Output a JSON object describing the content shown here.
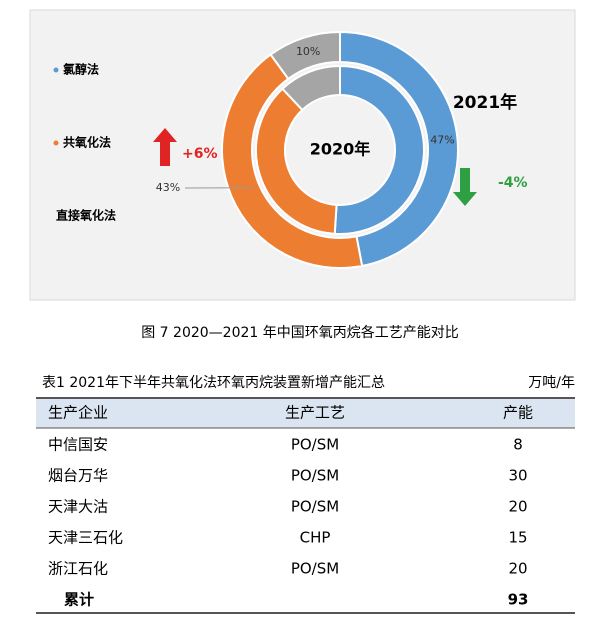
{
  "chart_data": {
    "type": "nested-donut",
    "center_label": "2020年",
    "ring_label": "2021年",
    "categories": [
      "氯醇法",
      "共氧化法",
      "直接氧化法"
    ],
    "colors": [
      "#5b9bd5",
      "#ed7d31",
      "#a5a5a5"
    ],
    "series": [
      {
        "name": "2020年",
        "values": [
          51,
          37,
          12
        ]
      },
      {
        "name": "2021年",
        "values": [
          47,
          43,
          10
        ],
        "value_labels": [
          "47%",
          "43%",
          "10%"
        ]
      }
    ],
    "annotations": [
      {
        "text": "+6%",
        "color": "#e02424"
      },
      {
        "text": "-4%",
        "color": "#2ea043"
      }
    ],
    "caption": "图 7  2020—2021 年中国环氧丙烷各工艺产能对比"
  },
  "table": {
    "title": "表1  2021年下半年共氧化法环氧丙烷装置新增产能汇总",
    "unit": "万吨/年",
    "headers": [
      "生产企业",
      "生产工艺",
      "产能"
    ],
    "rows": [
      [
        "中信国安",
        "PO/SM",
        8
      ],
      [
        "烟台万华",
        "PO/SM",
        30
      ],
      [
        "天津大沽",
        "PO/SM",
        20
      ],
      [
        "天津三石化",
        "CHP",
        15
      ],
      [
        "浙江石化",
        "PO/SM",
        20
      ],
      [
        "累计",
        null,
        93
      ]
    ]
  }
}
